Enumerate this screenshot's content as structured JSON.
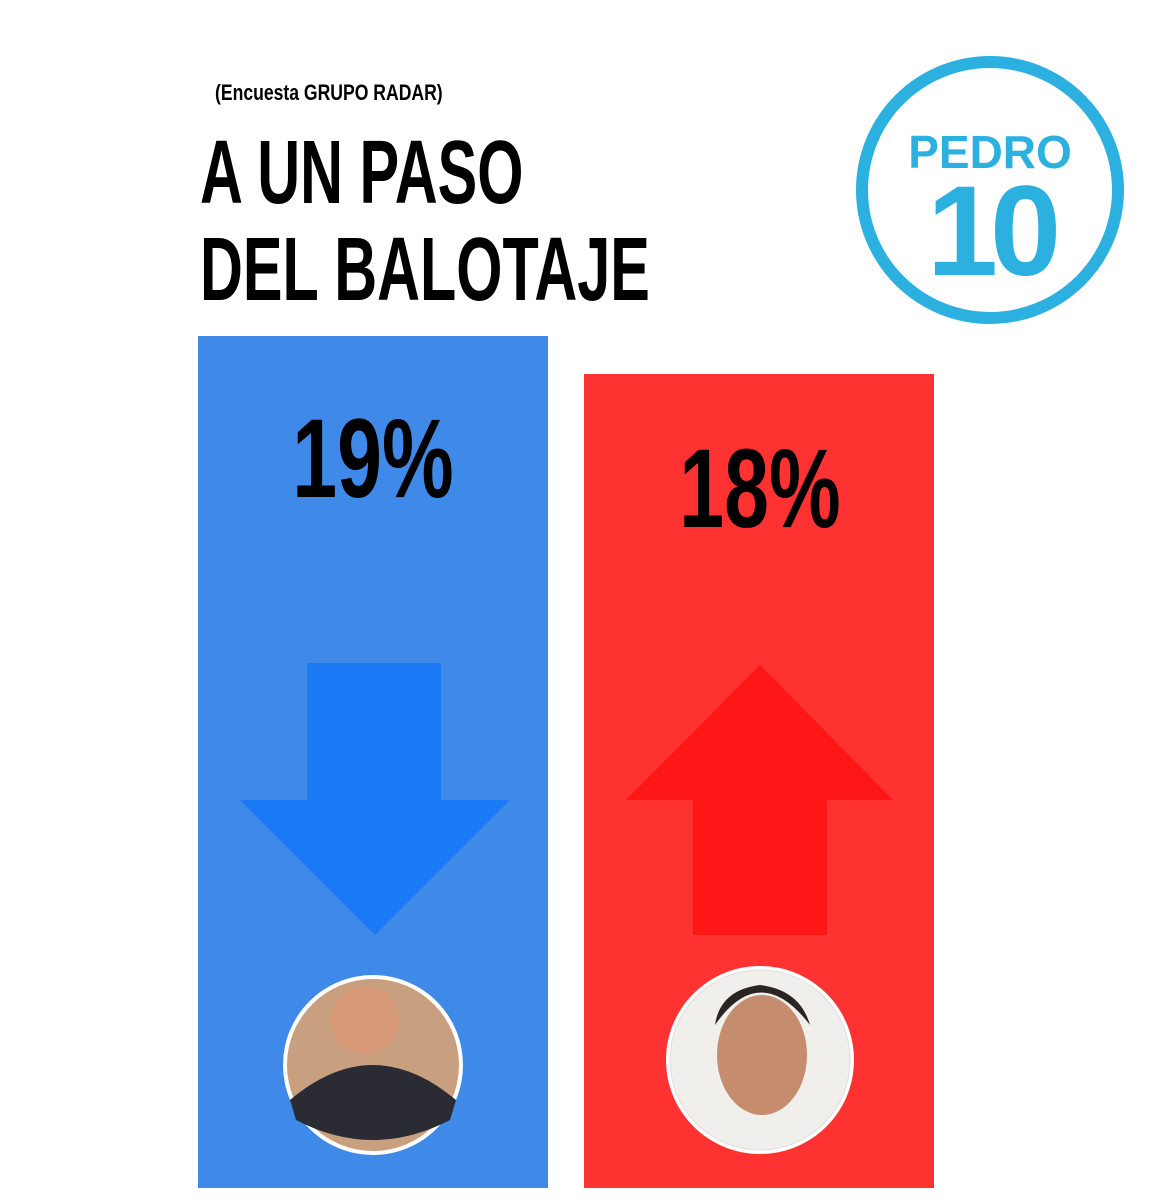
{
  "header": {
    "source": "(Encuesta GRUPO RADAR)",
    "title_lines": [
      "A UN PASO",
      "DEL BALOTAJE"
    ]
  },
  "logo": {
    "top": "PEDRO",
    "number": "10"
  },
  "columns": [
    {
      "percent": "19%"
    },
    {
      "percent": "18%"
    }
  ]
}
